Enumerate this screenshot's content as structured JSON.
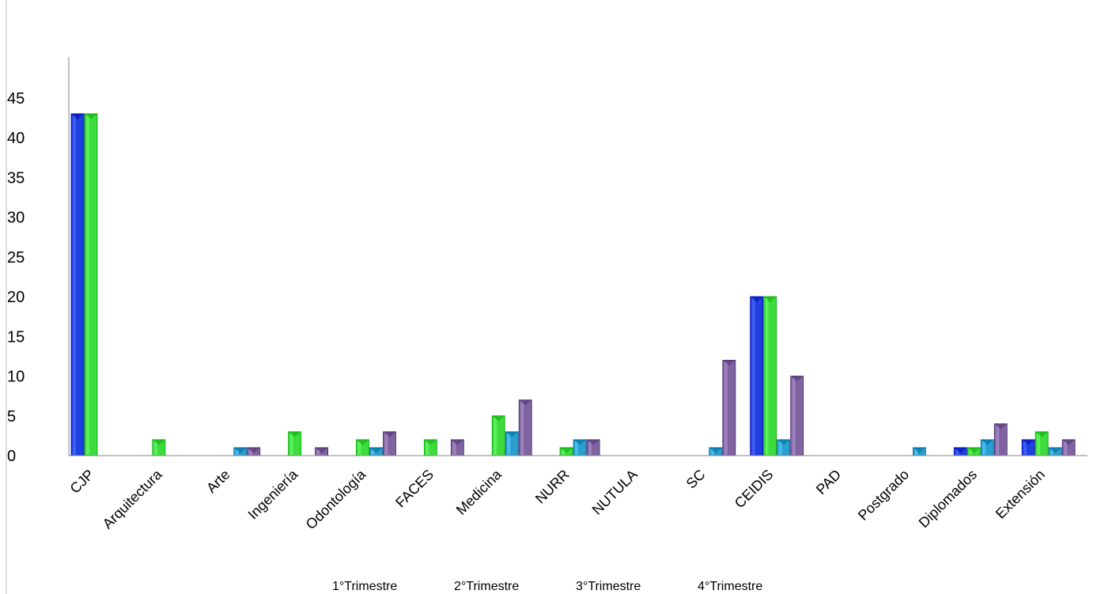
{
  "chart_data": {
    "type": "bar",
    "title": "",
    "xlabel": "",
    "ylabel": "",
    "ylim": [
      0,
      45
    ],
    "yticks": [
      0,
      5,
      10,
      15,
      20,
      25,
      30,
      35,
      40,
      45
    ],
    "grid": false,
    "legend_position": "bottom",
    "categories": [
      "CJP",
      "Arquitectura",
      "Arte",
      "Ingeniería",
      "Odontología",
      "FACES",
      "Medicina",
      "NURR",
      "NUTULA",
      "SC",
      "CEIDIS",
      "PAD",
      "Postgrado",
      "Diplomados",
      "Extensión"
    ],
    "series": [
      {
        "name": "1°Trimestre",
        "color": "#1f3fe0",
        "values": [
          43,
          0,
          0,
          0,
          0,
          0,
          0,
          0,
          0,
          0,
          20,
          0,
          0,
          1,
          2
        ]
      },
      {
        "name": "2°Trimestre",
        "color": "#3ddc3d",
        "values": [
          43,
          2,
          0,
          3,
          2,
          2,
          5,
          1,
          0,
          0,
          20,
          0,
          0,
          1,
          3
        ]
      },
      {
        "name": "3°Trimestre",
        "color": "#2a9fd0",
        "values": [
          0,
          0,
          1,
          0,
          1,
          0,
          3,
          2,
          0,
          1,
          2,
          0,
          1,
          2,
          1
        ]
      },
      {
        "name": "4°Trimestre",
        "color": "#8064a2",
        "values": [
          0,
          0,
          1,
          1,
          3,
          2,
          7,
          2,
          0,
          12,
          10,
          0,
          0,
          4,
          2
        ]
      }
    ]
  }
}
